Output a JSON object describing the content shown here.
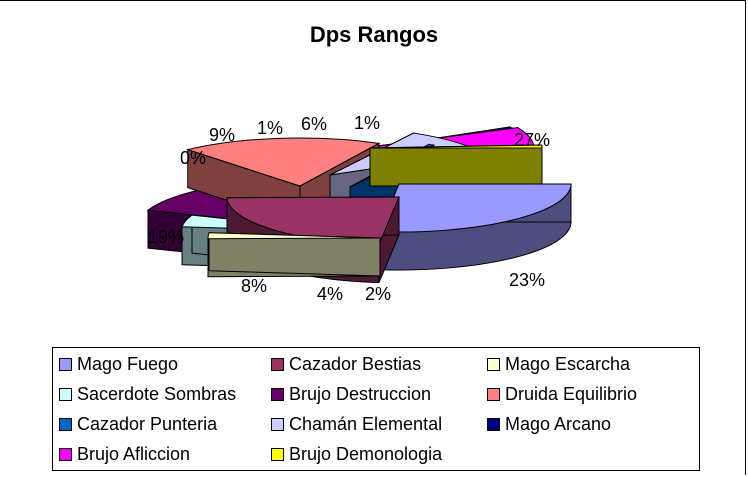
{
  "chart_data": {
    "type": "pie",
    "title": "Dps Rangos",
    "slices": [
      {
        "name": "Mago Fuego",
        "value": 27,
        "label": "27%",
        "color": "#9999FF",
        "side": "#4D4D80"
      },
      {
        "name": "Cazador Bestias",
        "value": 23,
        "label": "23%",
        "color": "#993366",
        "side": "#4D1A33"
      },
      {
        "name": "Mago Escarcha",
        "value": 2,
        "label": "2%",
        "color": "#FFFFCC",
        "side": "#808066"
      },
      {
        "name": "Sacerdote Sombras",
        "value": 4,
        "label": "4%",
        "color": "#CCFFFF",
        "side": "#668080"
      },
      {
        "name": "Brujo Destruccion",
        "value": 8,
        "label": "8%",
        "color": "#660066",
        "side": "#330033"
      },
      {
        "name": "Druida Equilibrio",
        "value": 19,
        "label": "19%",
        "color": "#FF8080",
        "side": "#804040"
      },
      {
        "name": "Cazador Punteria",
        "value": 0.5,
        "label": "0%",
        "color": "#0066CC",
        "side": "#003366"
      },
      {
        "name": "Chamán Elemental",
        "value": 9,
        "label": "9%",
        "color": "#CCCCFF",
        "side": "#666680"
      },
      {
        "name": "Mago Arcano",
        "value": 1,
        "label": "1%",
        "color": "#000080",
        "side": "#000040"
      },
      {
        "name": "Brujo Afliccion",
        "value": 6,
        "label": "6%",
        "color": "#FF00FF",
        "side": "#800080"
      },
      {
        "name": "Brujo Demonologia",
        "value": 1,
        "label": "1%",
        "color": "#FFFF00",
        "side": "#808000"
      }
    ],
    "legend": {
      "placement": "bottom"
    }
  }
}
